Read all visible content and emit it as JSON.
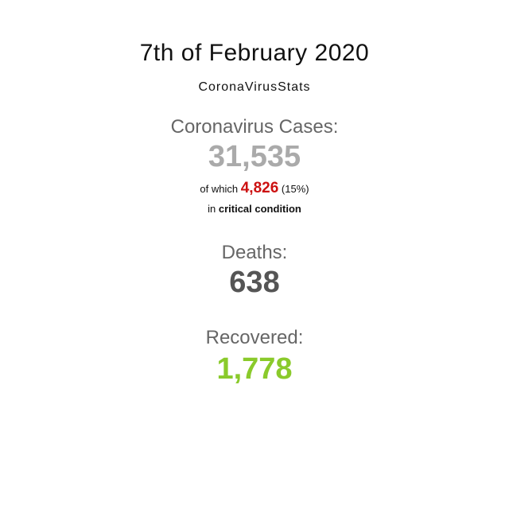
{
  "header": {
    "title": "7th of February 2020",
    "subtitle": "CoronaVirusStats"
  },
  "cases": {
    "label": "Coronavirus Cases:",
    "value": "31,535",
    "critical_prefix": "of which",
    "critical_value": "4,826",
    "critical_percent": "(15%)",
    "critical_line2_prefix": "in",
    "critical_line2_bold": "critical condition"
  },
  "deaths": {
    "label": "Deaths:",
    "value": "638"
  },
  "recovered": {
    "label": "Recovered:",
    "value": "1,778"
  },
  "colors": {
    "cases_value": "#aaaaaa",
    "critical_value": "#cc1111",
    "deaths_value": "#555555",
    "recovered_value": "#8aca2b",
    "label_gray": "#666666"
  }
}
